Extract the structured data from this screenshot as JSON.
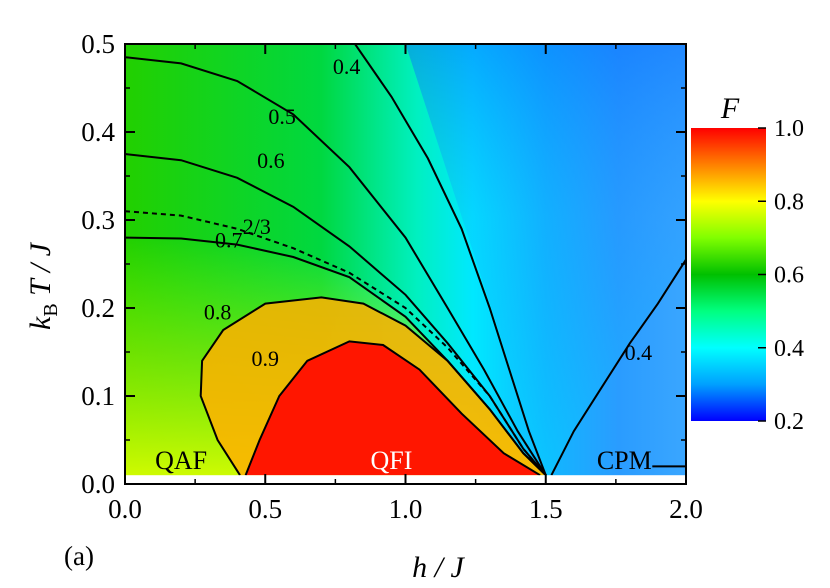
{
  "chart_data": {
    "type": "heatmap",
    "panel_label": "(a)",
    "x_axis": {
      "label_main": "h",
      "label_rest": " / J",
      "range": [
        0.0,
        2.0
      ],
      "ticks": [
        0.0,
        0.5,
        1.0,
        1.5,
        2.0
      ],
      "tick_labels": [
        "0.0",
        "0.5",
        "1.0",
        "1.5",
        "2.0"
      ]
    },
    "y_axis": {
      "label_k": "k",
      "label_sub": "B",
      "label_rest": " T / J",
      "range": [
        0.0,
        0.5
      ],
      "ticks": [
        0.0,
        0.1,
        0.2,
        0.3,
        0.4,
        0.5
      ],
      "tick_labels": [
        "0.0",
        "0.1",
        "0.2",
        "0.3",
        "0.4",
        "0.5"
      ]
    },
    "colorbar": {
      "title": "F",
      "range": [
        0.2,
        1.0
      ],
      "ticks": [
        0.2,
        0.4,
        0.6,
        0.8,
        1.0
      ],
      "tick_labels": [
        "0.2",
        "0.4",
        "0.6",
        "0.8",
        "1.0"
      ],
      "colormap": [
        "#0000ff",
        "#00a0ff",
        "#00ffff",
        "#00ff80",
        "#00c000",
        "#80ff00",
        "#ffff00",
        "#ff8000",
        "#ff0000"
      ]
    },
    "regions": [
      {
        "label": "QAF",
        "x": 0.2,
        "y": 0.015
      },
      {
        "label": "QFI",
        "x": 0.95,
        "y": 0.015
      },
      {
        "label": "CPM",
        "x": 1.78,
        "y": 0.015
      }
    ],
    "contours": [
      {
        "level": "0.4",
        "label_at": [
          0.79,
          0.475
        ],
        "points": [
          [
            0.82,
            0.5
          ],
          [
            0.95,
            0.44
          ],
          [
            1.08,
            0.37
          ],
          [
            1.2,
            0.29
          ],
          [
            1.3,
            0.2
          ],
          [
            1.38,
            0.12
          ],
          [
            1.44,
            0.06
          ],
          [
            1.5,
            0.01
          ]
        ]
      },
      {
        "level": "0.4",
        "label_at": [
          1.83,
          0.15
        ],
        "points": [
          [
            1.52,
            0.01
          ],
          [
            1.6,
            0.06
          ],
          [
            1.7,
            0.11
          ],
          [
            1.8,
            0.16
          ],
          [
            1.9,
            0.205
          ],
          [
            2.0,
            0.255
          ]
        ]
      },
      {
        "level": "0.5",
        "label_at": [
          0.56,
          0.418
        ],
        "points": [
          [
            0.0,
            0.485
          ],
          [
            0.2,
            0.478
          ],
          [
            0.4,
            0.458
          ],
          [
            0.6,
            0.42
          ],
          [
            0.8,
            0.36
          ],
          [
            1.0,
            0.28
          ],
          [
            1.15,
            0.2
          ],
          [
            1.28,
            0.13
          ],
          [
            1.4,
            0.06
          ],
          [
            1.5,
            0.01
          ]
        ]
      },
      {
        "level": "0.6",
        "label_at": [
          0.52,
          0.368
        ],
        "points": [
          [
            0.0,
            0.375
          ],
          [
            0.2,
            0.368
          ],
          [
            0.4,
            0.348
          ],
          [
            0.6,
            0.315
          ],
          [
            0.8,
            0.27
          ],
          [
            1.0,
            0.215
          ],
          [
            1.15,
            0.16
          ],
          [
            1.3,
            0.1
          ],
          [
            1.42,
            0.04
          ],
          [
            1.5,
            0.01
          ]
        ]
      },
      {
        "level": "2/3",
        "label_at": [
          0.47,
          0.293
        ],
        "points": [
          [
            0.0,
            0.31
          ],
          [
            0.2,
            0.305
          ],
          [
            0.4,
            0.29
          ],
          [
            0.6,
            0.268
          ],
          [
            0.8,
            0.24
          ],
          [
            1.0,
            0.2
          ],
          [
            1.15,
            0.155
          ],
          [
            1.3,
            0.1
          ],
          [
            1.42,
            0.04
          ],
          [
            1.5,
            0.01
          ]
        ]
      },
      {
        "level": "0.7",
        "label_at": [
          0.37,
          0.278
        ],
        "points": [
          [
            0.0,
            0.28
          ],
          [
            0.2,
            0.279
          ],
          [
            0.4,
            0.272
          ],
          [
            0.6,
            0.258
          ],
          [
            0.8,
            0.235
          ],
          [
            1.0,
            0.19
          ],
          [
            1.15,
            0.14
          ],
          [
            1.3,
            0.085
          ],
          [
            1.42,
            0.035
          ],
          [
            1.5,
            0.01
          ]
        ]
      },
      {
        "level": "0.8",
        "label_at": [
          0.33,
          0.196
        ],
        "points": [
          [
            0.41,
            0.01
          ],
          [
            0.33,
            0.05
          ],
          [
            0.27,
            0.1
          ],
          [
            0.275,
            0.14
          ],
          [
            0.35,
            0.175
          ],
          [
            0.5,
            0.205
          ],
          [
            0.7,
            0.212
          ],
          [
            0.85,
            0.205
          ],
          [
            1.0,
            0.18
          ],
          [
            1.15,
            0.14
          ],
          [
            1.3,
            0.085
          ],
          [
            1.42,
            0.035
          ],
          [
            1.5,
            0.01
          ]
        ]
      },
      {
        "level": "0.9",
        "label_at": [
          0.5,
          0.143
        ],
        "points": [
          [
            0.43,
            0.01
          ],
          [
            0.48,
            0.05
          ],
          [
            0.55,
            0.1
          ],
          [
            0.65,
            0.14
          ],
          [
            0.8,
            0.162
          ],
          [
            0.92,
            0.158
          ],
          [
            1.05,
            0.13
          ],
          [
            1.2,
            0.08
          ],
          [
            1.35,
            0.035
          ],
          [
            1.48,
            0.01
          ]
        ]
      },
      {
        "level": "",
        "label_at": null,
        "points": [
          [
            1.88,
            0.02
          ],
          [
            2.0,
            0.02
          ]
        ]
      }
    ]
  }
}
